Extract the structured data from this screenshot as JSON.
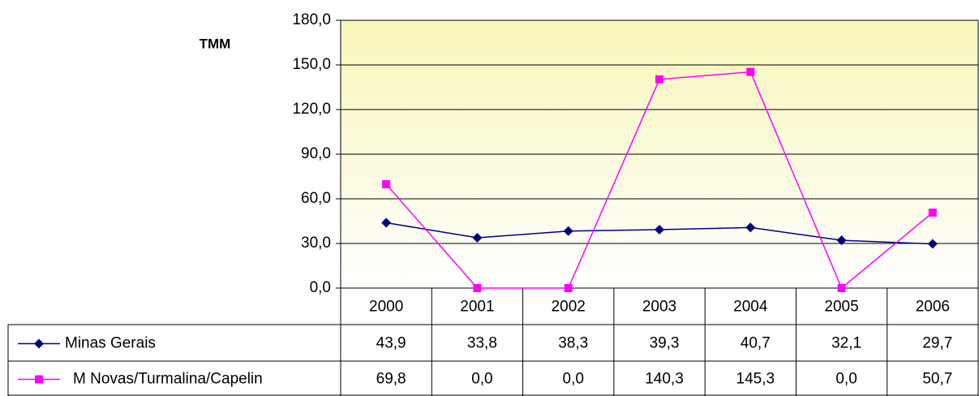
{
  "chart_data": {
    "type": "line",
    "title": "TMM",
    "categories": [
      "2000",
      "2001",
      "2002",
      "2003",
      "2004",
      "2005",
      "2006"
    ],
    "series": [
      {
        "name": "Minas Gerais",
        "color": "#000080",
        "marker": "diamond",
        "values": [
          43.9,
          33.8,
          38.3,
          39.3,
          40.7,
          32.1,
          29.7
        ],
        "value_labels": [
          "43,9",
          "33,8",
          "38,3",
          "39,3",
          "40,7",
          "32,1",
          "29,7"
        ]
      },
      {
        "name": "M Novas/Turmalina/Capelin",
        "color": "#ff00ff",
        "marker": "square",
        "values": [
          69.8,
          0.0,
          0.0,
          140.3,
          145.3,
          0.0,
          50.7
        ],
        "value_labels": [
          "69,8",
          "0,0",
          "0,0",
          "140,3",
          "145,3",
          "0,0",
          "50,7"
        ]
      }
    ],
    "ylim": [
      0,
      180
    ],
    "yticks": [
      {
        "value": 0,
        "label": "0,0"
      },
      {
        "value": 30,
        "label": "30,0"
      },
      {
        "value": 60,
        "label": "60,0"
      },
      {
        "value": 90,
        "label": "90,0"
      },
      {
        "value": 120,
        "label": "120,0"
      },
      {
        "value": 150,
        "label": "150,0"
      },
      {
        "value": 180,
        "label": "180,0"
      }
    ],
    "grid": true
  }
}
